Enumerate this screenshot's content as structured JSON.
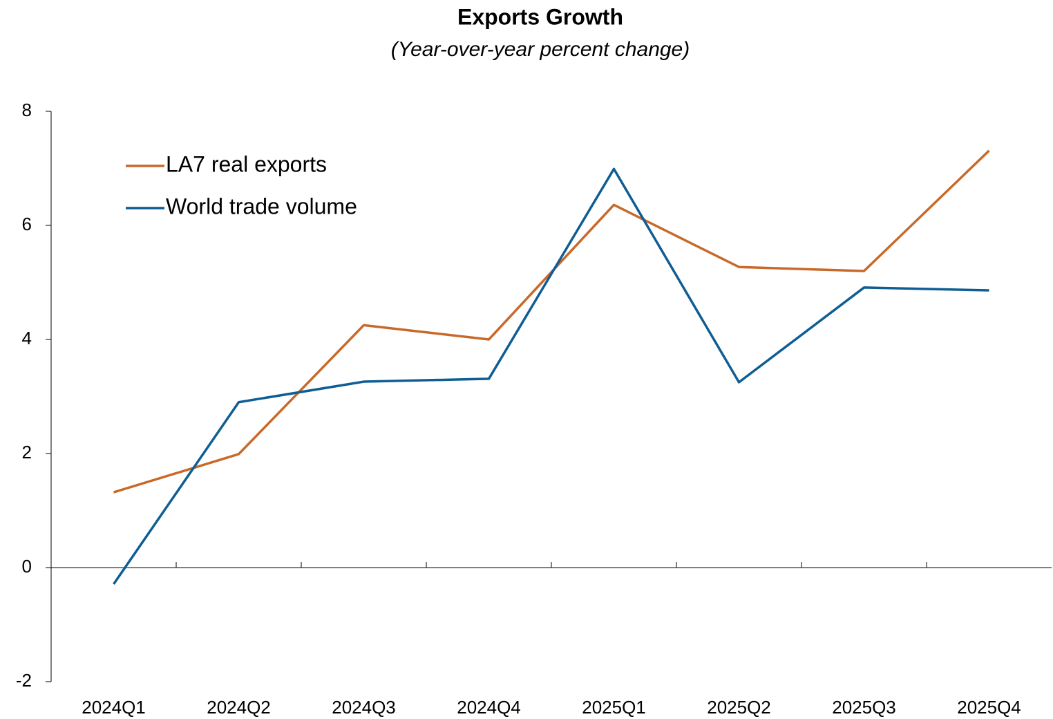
{
  "chart_data": {
    "type": "line",
    "title": "Exports Growth",
    "subtitle": "(Year-over-year percent change)",
    "categories": [
      "2024Q1",
      "2024Q2",
      "2024Q3",
      "2024Q4",
      "2025Q1",
      "2025Q2",
      "2025Q3",
      "2025Q4"
    ],
    "series": [
      {
        "name": "LA7 real exports",
        "color": "#c8692a",
        "values": [
          1.32,
          1.99,
          4.25,
          4.0,
          6.36,
          5.27,
          5.2,
          7.31
        ]
      },
      {
        "name": "World trade volume",
        "color": "#0e5d94",
        "values": [
          -0.29,
          2.9,
          3.26,
          3.31,
          6.99,
          3.25,
          4.91,
          4.86
        ]
      }
    ],
    "ylim": [
      -2,
      8
    ],
    "yticks": [
      -2,
      0,
      2,
      4,
      6,
      8
    ],
    "grid": false,
    "legend": "upper left"
  }
}
